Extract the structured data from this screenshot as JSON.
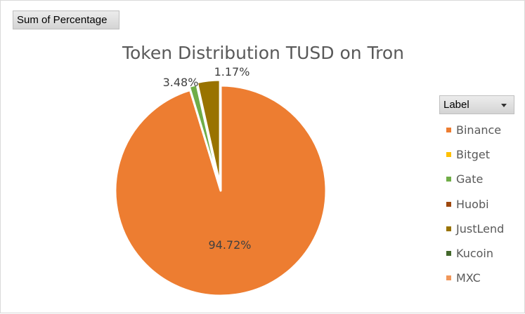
{
  "pivot": {
    "value_field_label": "Sum of Percentage",
    "legend_field_label": "Label"
  },
  "chart_data": {
    "type": "pie",
    "title": "Token Distribution TUSD on Tron",
    "legend_position": "right",
    "categories": [
      "Binance",
      "Bitget",
      "Gate",
      "Huobi",
      "JustLend",
      "Kucoin",
      "MXC"
    ],
    "values": [
      94.72,
      0,
      1.17,
      0,
      3.48,
      0,
      0
    ],
    "data_labels": [
      "94.72%",
      "",
      "1.17%",
      "",
      "3.48%",
      "",
      ""
    ],
    "colors": [
      "#ED7D31",
      "#FFC000",
      "#70AD47",
      "#9E480E",
      "#997300",
      "#43682B",
      "#F1975A"
    ]
  }
}
